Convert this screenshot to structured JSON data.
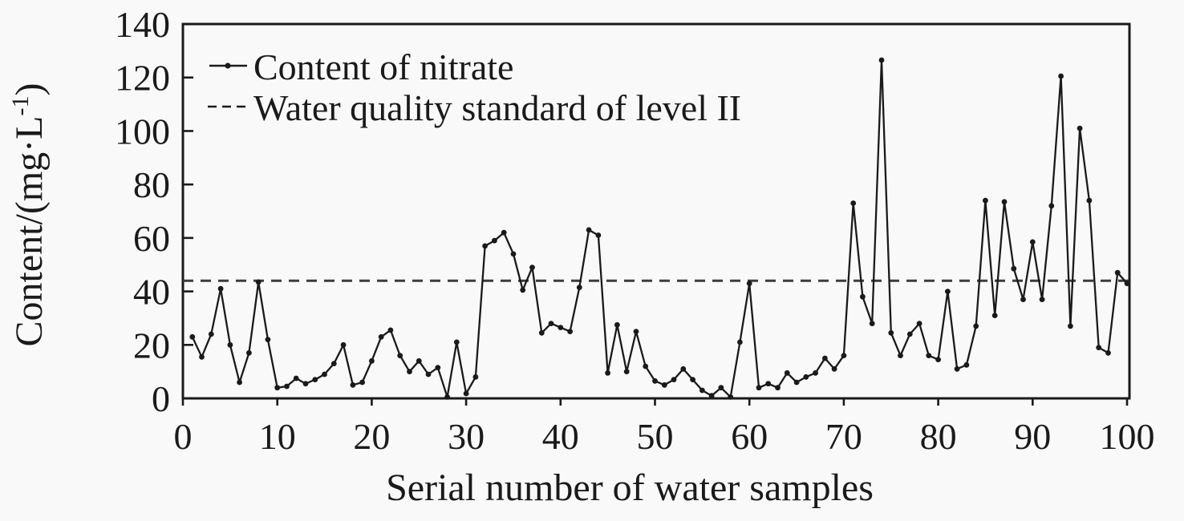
{
  "figure": {
    "background": "#f9f9f9",
    "ink_color": "#1a1a1a",
    "dash_color": "#3c3c3c"
  },
  "chart_data": {
    "type": "line",
    "title": "",
    "xlabel": "Serial number of water samples",
    "ylabel": "Content/(mg·L⁻¹)",
    "xlim": [
      0,
      100
    ],
    "ylim": [
      0,
      140
    ],
    "xticks": [
      0,
      10,
      20,
      30,
      40,
      50,
      60,
      70,
      80,
      90,
      100
    ],
    "yticks": [
      0,
      20,
      40,
      60,
      80,
      100,
      120,
      140
    ],
    "grid": false,
    "legend_position": "top-left-inside",
    "series": [
      {
        "name": "Content of nitrate",
        "style": "solid-line-with-dot-markers",
        "x": [
          1,
          2,
          3,
          4,
          5,
          6,
          7,
          8,
          9,
          10,
          11,
          12,
          13,
          14,
          15,
          16,
          17,
          18,
          19,
          20,
          21,
          22,
          23,
          24,
          25,
          26,
          27,
          28,
          29,
          30,
          31,
          32,
          33,
          34,
          35,
          36,
          37,
          38,
          39,
          40,
          41,
          42,
          43,
          44,
          45,
          46,
          47,
          48,
          49,
          50,
          51,
          52,
          53,
          54,
          55,
          56,
          57,
          58,
          59,
          60,
          61,
          62,
          63,
          64,
          65,
          66,
          67,
          68,
          69,
          70,
          71,
          72,
          73,
          74,
          75,
          76,
          77,
          78,
          79,
          80,
          81,
          82,
          83,
          84,
          85,
          86,
          87,
          88,
          89,
          90,
          91,
          92,
          93,
          94,
          95,
          96,
          97,
          98,
          99,
          100
        ],
        "values": [
          23,
          15.5,
          24,
          41,
          20,
          6,
          17,
          43.5,
          22,
          4,
          4.5,
          7.5,
          5.5,
          7,
          9,
          13,
          20,
          5,
          6,
          14,
          23,
          25.5,
          16,
          10,
          14,
          9,
          11.5,
          0.5,
          21,
          1.8,
          8,
          57,
          59,
          62,
          54,
          40.5,
          49,
          24.5,
          28,
          26.5,
          25,
          41.5,
          63,
          61,
          9.5,
          27.5,
          10,
          25,
          12,
          6.5,
          5,
          7,
          11,
          7,
          3,
          1,
          4,
          0.5,
          21,
          43,
          4,
          5.5,
          4,
          9.5,
          6,
          8,
          9.5,
          15,
          11,
          16,
          73,
          38,
          28,
          126.5,
          24.5,
          16,
          24,
          28,
          16,
          14.5,
          40,
          11,
          12.5,
          27,
          74,
          31,
          73.5,
          48.5,
          37,
          58.5,
          37,
          72,
          120.5,
          27,
          101,
          74,
          19,
          17,
          47,
          43
        ]
      },
      {
        "name": "Water quality standard of level II",
        "style": "dashed-horizontal-line",
        "type": "hline",
        "value": 44
      }
    ]
  }
}
